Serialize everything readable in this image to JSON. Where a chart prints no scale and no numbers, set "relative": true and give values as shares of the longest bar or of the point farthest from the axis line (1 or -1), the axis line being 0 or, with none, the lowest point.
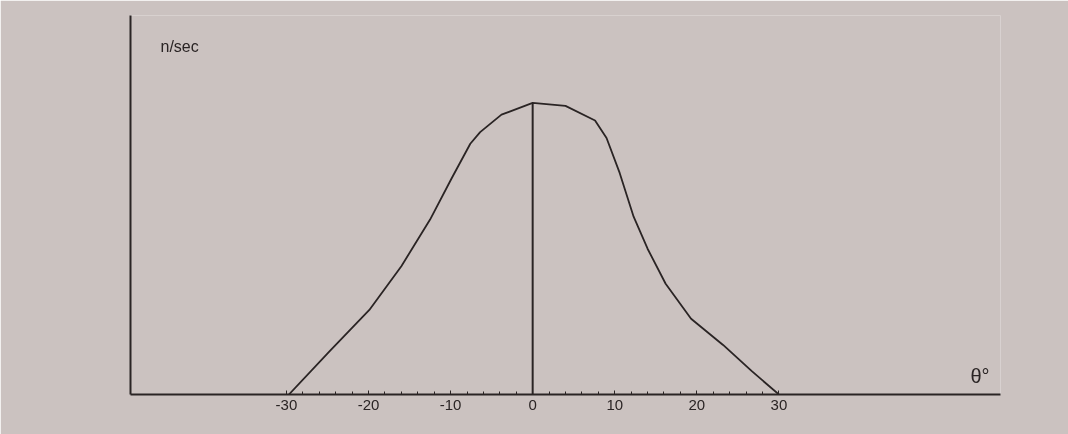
{
  "chart_data": {
    "type": "line",
    "relative": true,
    "xlabel": "θ°",
    "ylabel": "n/sec",
    "tick_labels": "x",
    "grid": false,
    "marker": "none",
    "line_style": "solid",
    "xlim": [
      -49,
      57
    ],
    "xticks": [
      -30,
      {
        "value": -28,
        "label": null
      },
      {
        "value": -26,
        "label": null
      },
      {
        "value": -24,
        "label": null
      },
      {
        "value": -22,
        "label": null
      },
      -20,
      {
        "value": -18,
        "label": null
      },
      {
        "value": -16,
        "label": null
      },
      {
        "value": -14,
        "label": null
      },
      {
        "value": -12,
        "label": null
      },
      -10,
      {
        "value": -8,
        "label": null
      },
      {
        "value": -6,
        "label": null
      },
      {
        "value": -4,
        "label": null
      },
      {
        "value": -2,
        "label": null
      },
      0,
      {
        "value": 2,
        "label": null
      },
      {
        "value": 4,
        "label": null
      },
      {
        "value": 6,
        "label": null
      },
      {
        "value": 8,
        "label": null
      },
      10,
      {
        "value": 12,
        "label": null
      },
      {
        "value": 14,
        "label": null
      },
      {
        "value": 16,
        "label": null
      },
      {
        "value": 18,
        "label": null
      },
      20,
      {
        "value": 22,
        "label": null
      },
      {
        "value": 24,
        "label": null
      },
      {
        "value": 26,
        "label": null
      },
      {
        "value": 28,
        "label": null
      },
      30
    ],
    "ref_lines": [
      {
        "axis": "x",
        "value": 0,
        "color": "#2a2424"
      }
    ],
    "series": [
      {
        "color": "#2a2424",
        "x": [
          -29.7,
          -24.7,
          -19.9,
          -16,
          -12.5,
          -9.9,
          -7.6,
          -6.4,
          -3.8,
          0,
          4,
          7.6,
          9,
          10.6,
          12.3,
          14,
          16.2,
          19.3,
          23.2,
          26.7,
          30
        ],
        "values": [
          0,
          0.15,
          0.29,
          0.44,
          0.6,
          0.74,
          0.86,
          0.9,
          0.96,
          1,
          0.99,
          0.94,
          0.88,
          0.76,
          0.61,
          0.5,
          0.38,
          0.26,
          0.17,
          0.08,
          0
        ]
      }
    ]
  }
}
